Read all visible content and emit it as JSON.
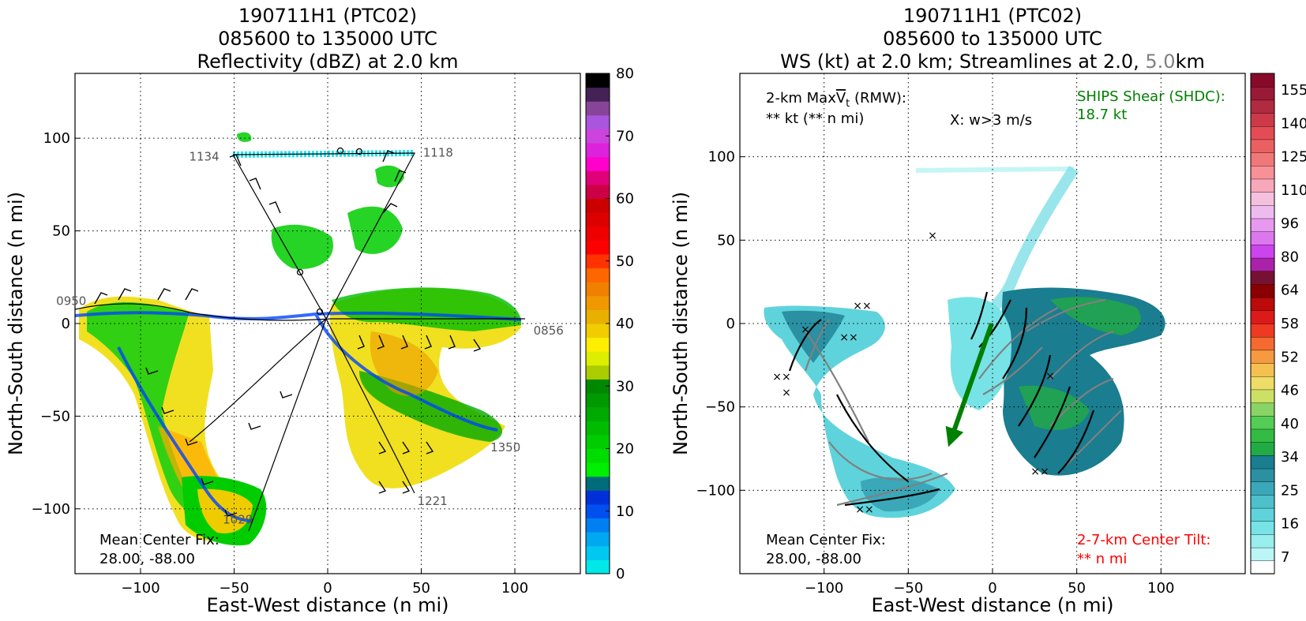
{
  "chart_data": [
    {
      "type": "heatmap",
      "title": [
        "190711H1 (PTC02)",
        "085600 to 135000 UTC",
        "Reflectivity (dBZ) at 2.0 km"
      ],
      "xlabel": "East-West distance (n mi)",
      "ylabel": "North-South distance (n mi)",
      "xlim": [
        -135,
        135
      ],
      "ylim": [
        -135,
        135
      ],
      "xticks": [
        -100,
        -50,
        0,
        50,
        100
      ],
      "yticks": [
        -100,
        -50,
        0,
        50,
        100
      ],
      "grid": "dotted",
      "colorbar": {
        "min": 0,
        "max": 80,
        "ticks": [
          0,
          10,
          20,
          30,
          40,
          50,
          60,
          70,
          80
        ],
        "colors": [
          "#00e8e8",
          "#00c8f0",
          "#00a8f0",
          "#0080f0",
          "#0050f0",
          "#0030d8",
          "#006c7a",
          "#00ee00",
          "#00dd00",
          "#00cc00",
          "#00bb00",
          "#00aa00",
          "#009900",
          "#008800",
          "#aacc00",
          "#ddee00",
          "#ffee00",
          "#f0cc00",
          "#e8b000",
          "#f09800",
          "#f08000",
          "#ff6600",
          "#ff3300",
          "#ff0000",
          "#ee0000",
          "#dd0000",
          "#cc0000",
          "#cc0044",
          "#e0007a",
          "#ff00cc",
          "#dd22dd",
          "#cc44dd",
          "#aa55dd",
          "#884499",
          "#442255",
          "#000000"
        ]
      },
      "flight_time_labels": [
        {
          "text": "1134",
          "x": -66,
          "y": 88
        },
        {
          "text": "1118",
          "x": 59,
          "y": 90
        },
        {
          "text": "0950",
          "x": -137,
          "y": 10
        },
        {
          "text": "0856",
          "x": 118,
          "y": -6
        },
        {
          "text": "1350",
          "x": 95,
          "y": -69
        },
        {
          "text": "1221",
          "x": 56,
          "y": -98
        },
        {
          "text": "1029",
          "x": -48,
          "y": -108
        }
      ],
      "annotation": [
        "Mean Center Fix:",
        "28.00, -88.00"
      ]
    },
    {
      "type": "heatmap",
      "title": [
        "190711H1 (PTC02)",
        "085600 to 135000 UTC"
      ],
      "title_line3": {
        "prefix": "WS (kt) at 2.0 km; Streamlines at 2.0, ",
        "gray": "5.0",
        "suffix": "km"
      },
      "xlabel": "East-West distance (n mi)",
      "ylabel": "North-South distance (n mi)",
      "xlim": [
        -150,
        150
      ],
      "ylim": [
        -150,
        150
      ],
      "xticks": [
        -100,
        -50,
        0,
        50,
        100
      ],
      "yticks": [
        -100,
        -50,
        0,
        50,
        100
      ],
      "grid": "dotted",
      "colorbar": {
        "ticks": [
          "7",
          "16",
          "25",
          "34",
          "40",
          "46",
          "52",
          "58",
          "64",
          "80",
          "96",
          "110",
          "125",
          "140",
          "155"
        ],
        "colors": [
          "#ffffff",
          "#bbf5f5",
          "#99eeee",
          "#77e3e6",
          "#5fd3db",
          "#4dc0cc",
          "#3aa8b8",
          "#2a90a2",
          "#1a7d90",
          "#22aa44",
          "#33bb44",
          "#55cc55",
          "#88d466",
          "#cce066",
          "#eedd66",
          "#f5c050",
          "#f59a40",
          "#f46a30",
          "#ee3a22",
          "#dd1a1a",
          "#bb0a0a",
          "#8a0000",
          "#771133",
          "#aa22aa",
          "#cc44ee",
          "#dd77ee",
          "#e699ee",
          "#eebbee",
          "#f5c0dd",
          "#f8a8bb",
          "#f89098",
          "#f07878",
          "#ea6060",
          "#e44c55",
          "#cc3a4a",
          "#b02a40",
          "#9a1a35",
          "#880a2a"
        ]
      },
      "annotations": {
        "maxvt_line1": "2-km Max",
        "maxvt_v": "V",
        "maxvt_t": "t",
        "maxvt_rmw": " (RMW):",
        "maxvt_line2": "** kt (** n mi)",
        "updraft": "X: w>3 m/s",
        "ships": [
          "SHIPS Shear (SHDC):",
          "18.7 kt"
        ],
        "center_fix": [
          "Mean Center Fix:",
          "28.00, -88.00"
        ],
        "tilt": [
          "2-7-km Center Tilt:",
          "** n mi"
        ]
      },
      "shear_vector_color": "#008000",
      "ships_color": "#008000",
      "tilt_color": "#ff0000"
    }
  ]
}
